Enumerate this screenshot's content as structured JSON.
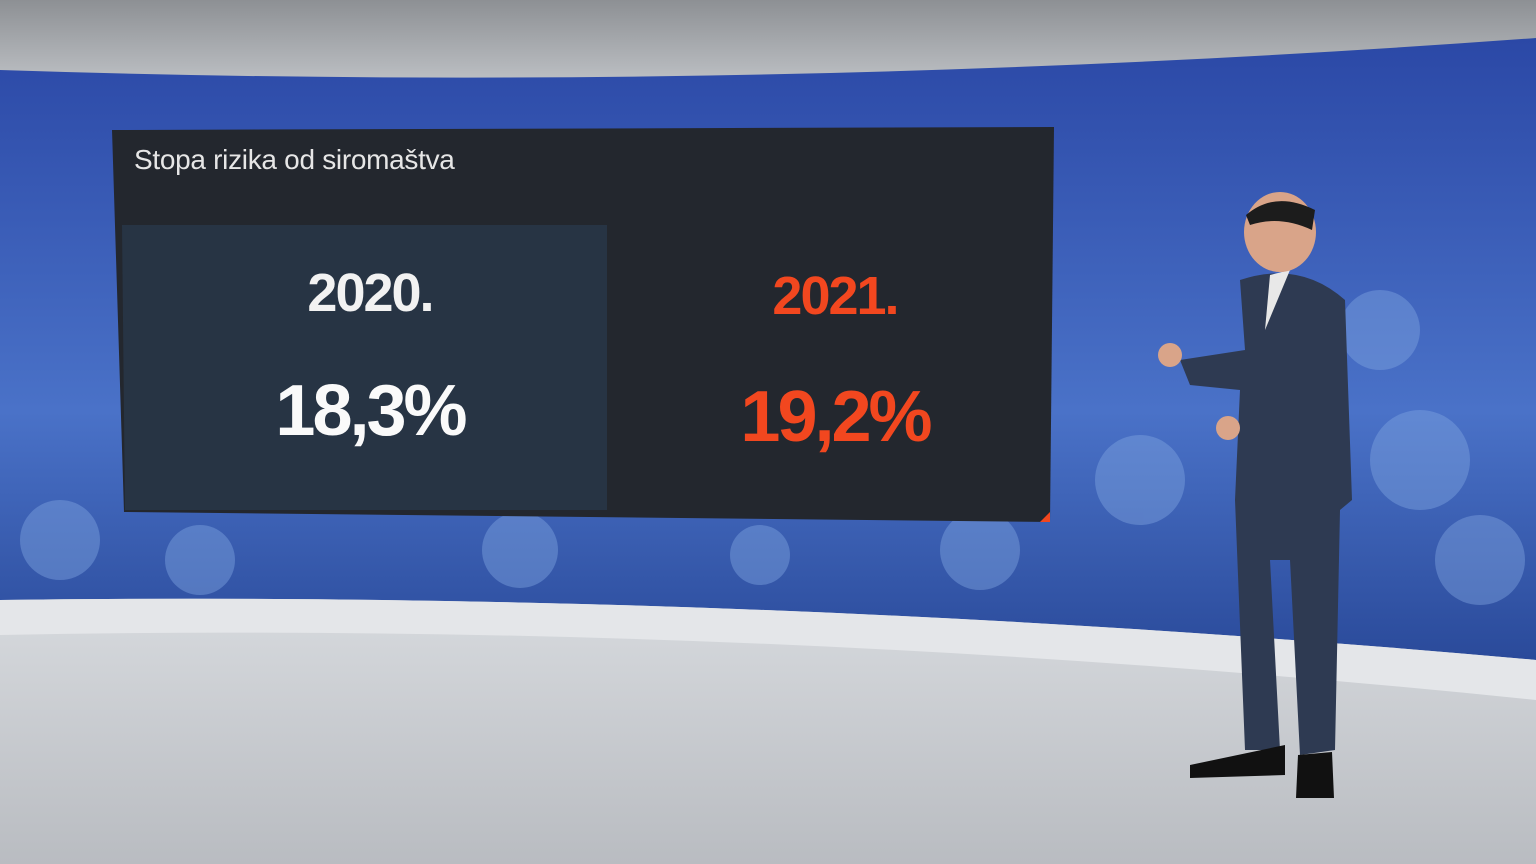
{
  "graphic": {
    "title": "Stopa rizika od siromaštva",
    "items": [
      {
        "year": "2020.",
        "value": "18,3%",
        "color": "#f2f2f2"
      },
      {
        "year": "2021.",
        "value": "19,2%",
        "color": "#f2471f"
      }
    ]
  },
  "colors": {
    "accent": "#f2471f",
    "wall": "#2a4aa8",
    "panel": "#23272e"
  }
}
